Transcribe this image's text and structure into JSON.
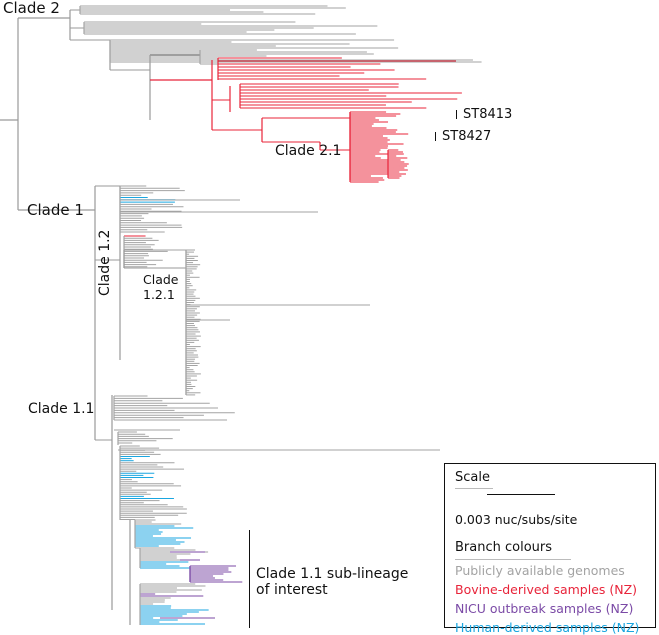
{
  "clades": {
    "clade2": "Clade 2",
    "clade2_1": "Clade 2.1",
    "clade1": "Clade 1",
    "clade1_2": "Clade 1.2",
    "clade1_2_1_line1": "Clade",
    "clade1_2_1_line2": "1.2.1",
    "clade1_1": "Clade 1.1",
    "subline_line1": "Clade 1.1 sub-lineage",
    "subline_line2": "of interest"
  },
  "sequence_types": [
    "ST8413",
    "ST8427"
  ],
  "legend": {
    "scale_title": "Scale",
    "scale_value": "0.003 nuc/subs/site",
    "colours_title": "Branch colours",
    "items": [
      {
        "label": "Publicly available genomes",
        "color": "#a3a3a3"
      },
      {
        "label": "Bovine-derived samples (NZ)",
        "color": "#e8243a"
      },
      {
        "label": "NICU outbreak samples (NZ)",
        "color": "#7b4aa6"
      },
      {
        "label": "Human-derived samples (NZ)",
        "color": "#1aa6e0"
      }
    ]
  },
  "colors": {
    "public": "#a3a3a3",
    "bovine": "#e8243a",
    "nicu": "#7b4aa6",
    "human": "#1aa6e0",
    "trunk": "#9a9a9a"
  }
}
